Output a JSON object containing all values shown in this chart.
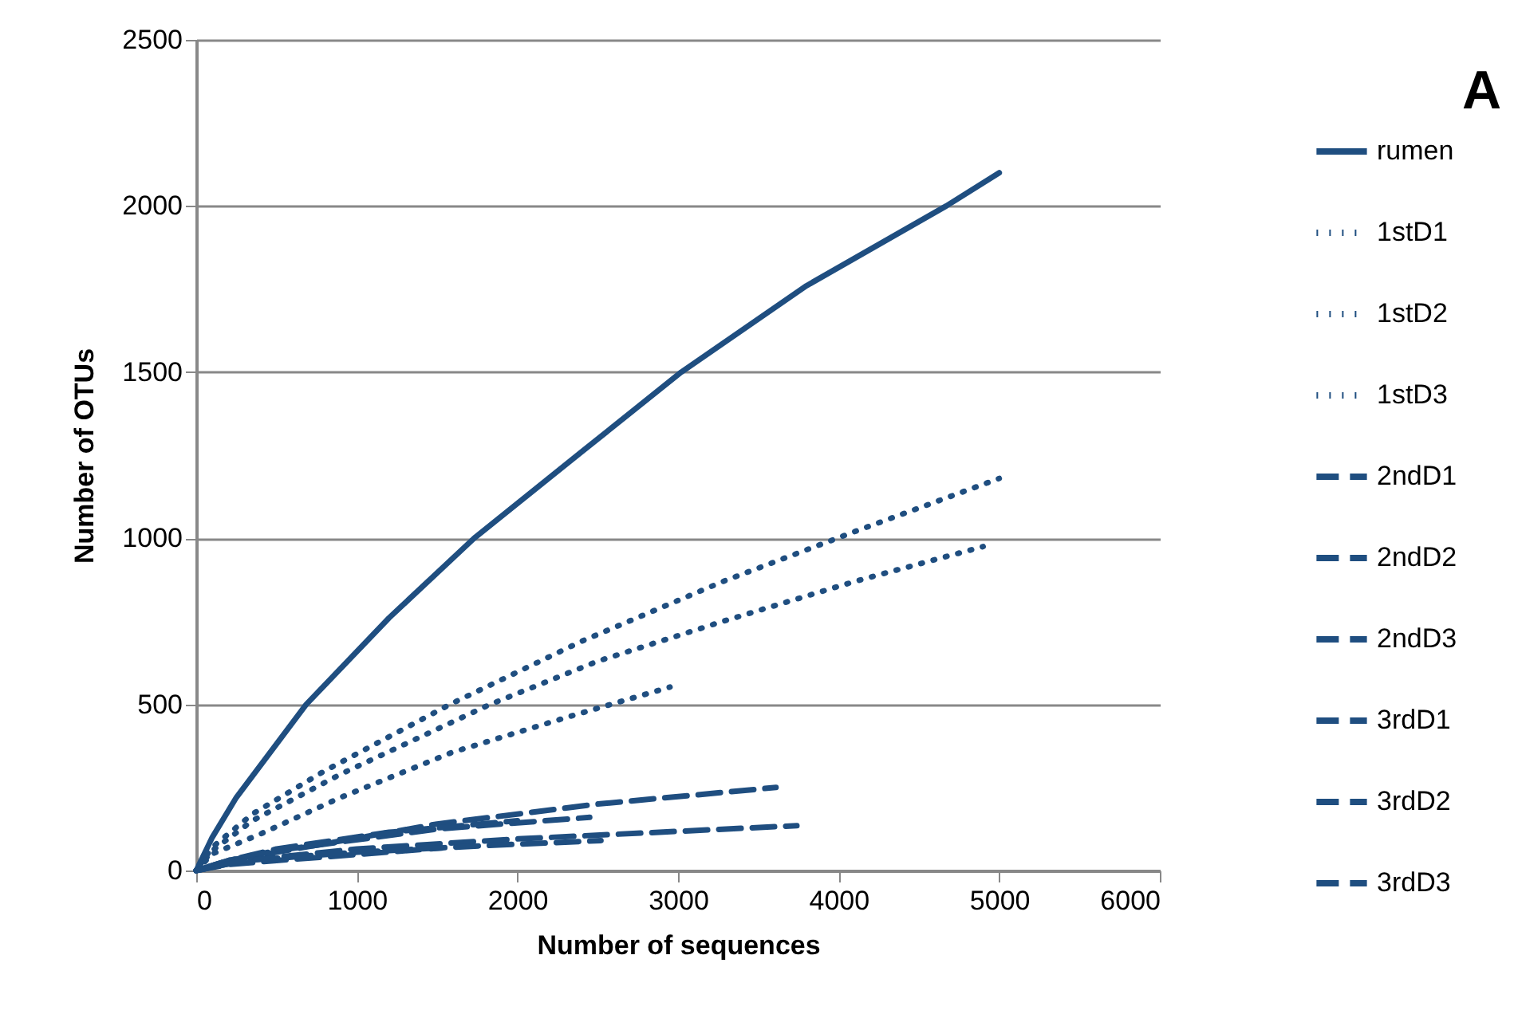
{
  "chart_data": {
    "type": "line",
    "xlabel": "Number of sequences",
    "ylabel": "Number of OTUs",
    "annotations": [
      "A"
    ],
    "xlim": [
      0,
      6000
    ],
    "xticks": [
      0,
      1000,
      2000,
      3000,
      4000,
      5000,
      6000
    ],
    "ylim": [
      0,
      2500
    ],
    "yticks": [
      0,
      500,
      1000,
      1500,
      2000,
      2500
    ],
    "grid": "y",
    "legend": "right",
    "marker": "none",
    "series": [
      {
        "name": "rumen",
        "color": "#1f4e80",
        "line_style": "solid",
        "x": [
          0,
          100,
          250,
          685,
          1200,
          1730,
          2400,
          3020,
          3800,
          4670,
          5000
        ],
        "values": [
          0,
          100,
          220,
          500,
          760,
          1000,
          1260,
          1500,
          1760,
          2000,
          2100
        ]
      },
      {
        "name": "1stD1",
        "color": "#1f4e80",
        "line_style": "dotted",
        "x": [
          0,
          100,
          350,
          800,
          1580,
          2400,
          3280,
          4100,
          5000
        ],
        "values": [
          0,
          70,
          170,
          300,
          500,
          690,
          870,
          1020,
          1180
        ]
      },
      {
        "name": "1stD2",
        "color": "#1f4e80",
        "line_style": "dotted",
        "x": [
          0,
          100,
          350,
          900,
          1830,
          2500,
          3280,
          4100,
          4900
        ],
        "values": [
          0,
          60,
          150,
          290,
          500,
          630,
          750,
          870,
          975
        ]
      },
      {
        "name": "1stD3",
        "color": "#1f4e80",
        "line_style": "dotted",
        "x": [
          0,
          100,
          400,
          900,
          1590,
          2300,
          2950
        ],
        "values": [
          0,
          50,
          110,
          220,
          355,
          460,
          552
        ]
      },
      {
        "name": "2ndD1",
        "color": "#1f4e80",
        "line_style": "dashed",
        "x": [
          0,
          200,
          500,
          1500,
          2500,
          3610
        ],
        "values": [
          0,
          30,
          55,
          140,
          200,
          250
        ]
      },
      {
        "name": "2ndD2",
        "color": "#1f4e80",
        "line_style": "dashed",
        "x": [
          0,
          200,
          500,
          1500,
          2450
        ],
        "values": [
          0,
          30,
          60,
          125,
          160
        ]
      },
      {
        "name": "2ndD3",
        "color": "#1f4e80",
        "line_style": "dashed",
        "x": [
          0,
          200,
          500,
          1200,
          2000
        ],
        "values": [
          0,
          30,
          65,
          115,
          150
        ]
      },
      {
        "name": "3rdD1",
        "color": "#1f4e80",
        "line_style": "dashed",
        "x": [
          0,
          300,
          1000,
          2000,
          3000,
          3740
        ],
        "values": [
          0,
          30,
          65,
          95,
          118,
          135
        ]
      },
      {
        "name": "3rdD2",
        "color": "#1f4e80",
        "line_style": "dashed",
        "x": [
          0,
          200,
          500,
          1000,
          1530
        ],
        "values": [
          0,
          18,
          30,
          48,
          68
        ]
      },
      {
        "name": "3rdD3",
        "color": "#1f4e80",
        "line_style": "dashed",
        "x": [
          0,
          300,
          1000,
          1800,
          2520
        ],
        "values": [
          0,
          30,
          55,
          75,
          90
        ]
      }
    ]
  }
}
